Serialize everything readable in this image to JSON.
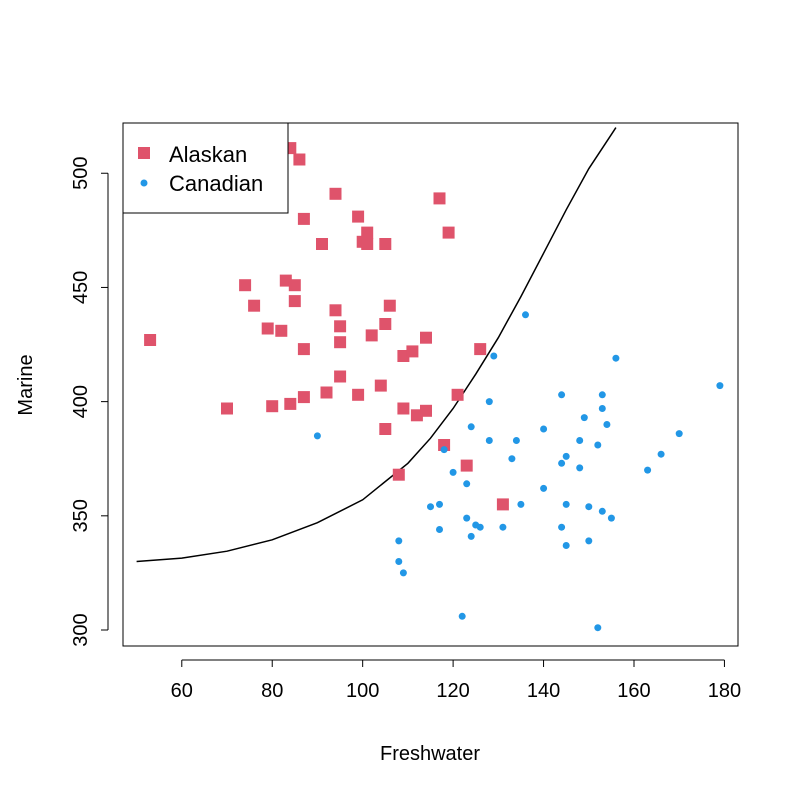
{
  "chart_data": {
    "type": "scatter",
    "xlabel": "Freshwater",
    "ylabel": "Marine",
    "xlim": [
      47,
      183
    ],
    "ylim": [
      293,
      522
    ],
    "x_ticks": [
      60,
      80,
      100,
      120,
      140,
      160,
      180
    ],
    "y_ticks": [
      300,
      350,
      400,
      450,
      500
    ],
    "grid": false,
    "legend_position": "top-left",
    "series": [
      {
        "name": "Alaskan",
        "marker": "square",
        "color": "#DF536B",
        "points": [
          [
            53,
            427
          ],
          [
            70,
            397
          ],
          [
            74,
            451
          ],
          [
            76,
            442
          ],
          [
            79,
            432
          ],
          [
            80,
            398
          ],
          [
            82,
            431
          ],
          [
            83,
            453
          ],
          [
            84,
            399
          ],
          [
            85,
            451
          ],
          [
            85,
            444
          ],
          [
            86,
            506
          ],
          [
            84,
            511
          ],
          [
            87,
            480
          ],
          [
            87,
            423
          ],
          [
            87,
            402
          ],
          [
            91,
            469
          ],
          [
            92,
            404
          ],
          [
            94,
            491
          ],
          [
            94,
            440
          ],
          [
            95,
            433
          ],
          [
            95,
            426
          ],
          [
            95,
            411
          ],
          [
            99,
            481
          ],
          [
            99,
            403
          ],
          [
            100,
            470
          ],
          [
            101,
            474
          ],
          [
            101,
            469
          ],
          [
            102,
            429
          ],
          [
            104,
            407
          ],
          [
            105,
            469
          ],
          [
            105,
            434
          ],
          [
            105,
            388
          ],
          [
            106,
            442
          ],
          [
            108,
            368
          ],
          [
            109,
            420
          ],
          [
            109,
            397
          ],
          [
            111,
            422
          ],
          [
            112,
            394
          ],
          [
            114,
            428
          ],
          [
            114,
            396
          ],
          [
            117,
            489
          ],
          [
            118,
            381
          ],
          [
            119,
            474
          ],
          [
            121,
            403
          ],
          [
            123,
            372
          ],
          [
            126,
            423
          ],
          [
            131,
            355
          ]
        ]
      },
      {
        "name": "Canadian",
        "marker": "dot",
        "color": "#2297E6",
        "points": [
          [
            90,
            385
          ],
          [
            108,
            339
          ],
          [
            108,
            330
          ],
          [
            109,
            325
          ],
          [
            115,
            354
          ],
          [
            117,
            355
          ],
          [
            117,
            344
          ],
          [
            118,
            379
          ],
          [
            120,
            369
          ],
          [
            122,
            306
          ],
          [
            123,
            364
          ],
          [
            123,
            349
          ],
          [
            124,
            389
          ],
          [
            124,
            341
          ],
          [
            125,
            346
          ],
          [
            126,
            345
          ],
          [
            128,
            383
          ],
          [
            128,
            400
          ],
          [
            129,
            420
          ],
          [
            131,
            345
          ],
          [
            133,
            375
          ],
          [
            134,
            383
          ],
          [
            135,
            355
          ],
          [
            136,
            438
          ],
          [
            140,
            388
          ],
          [
            140,
            362
          ],
          [
            144,
            403
          ],
          [
            144,
            373
          ],
          [
            144,
            345
          ],
          [
            145,
            376
          ],
          [
            145,
            355
          ],
          [
            145,
            337
          ],
          [
            148,
            371
          ],
          [
            148,
            383
          ],
          [
            149,
            393
          ],
          [
            150,
            354
          ],
          [
            150,
            339
          ],
          [
            152,
            381
          ],
          [
            152,
            301
          ],
          [
            153,
            403
          ],
          [
            153,
            397
          ],
          [
            153,
            352
          ],
          [
            154,
            390
          ],
          [
            155,
            349
          ],
          [
            156,
            419
          ],
          [
            163,
            370
          ],
          [
            166,
            377
          ],
          [
            170,
            386
          ],
          [
            179,
            407
          ]
        ]
      }
    ],
    "curve": {
      "x": [
        50,
        60,
        70,
        80,
        90,
        100,
        110,
        115,
        120,
        125,
        130,
        135,
        140,
        145,
        150,
        155,
        156
      ],
      "y": [
        330,
        331.5,
        334.5,
        339.5,
        347,
        357,
        373,
        384,
        397,
        412,
        428,
        446,
        465,
        484,
        502,
        517,
        520
      ]
    },
    "legend": {
      "entries": [
        "Alaskan",
        "Canadian"
      ]
    }
  }
}
